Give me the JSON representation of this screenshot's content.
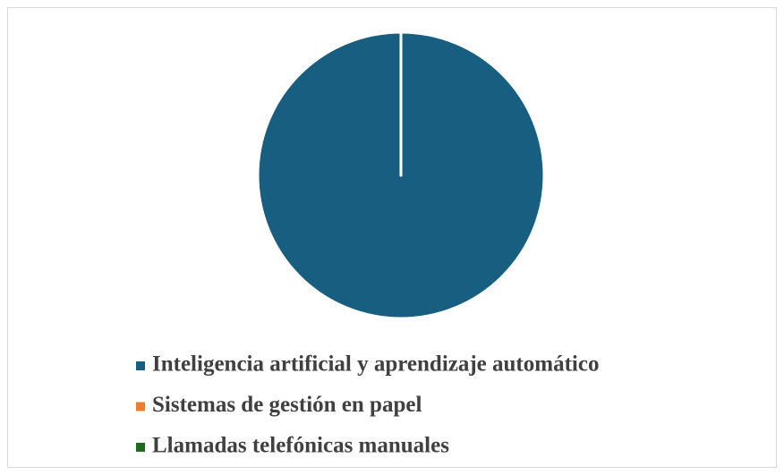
{
  "chart_data": {
    "type": "pie",
    "categories": [
      "Inteligencia artificial y aprendizaje automático",
      "Sistemas de gestión en papel",
      "Llamadas telefónicas manuales"
    ],
    "values": [
      100,
      0,
      0
    ],
    "colors": [
      "#175e80",
      "#ed7d31",
      "#1e6b1e"
    ]
  }
}
